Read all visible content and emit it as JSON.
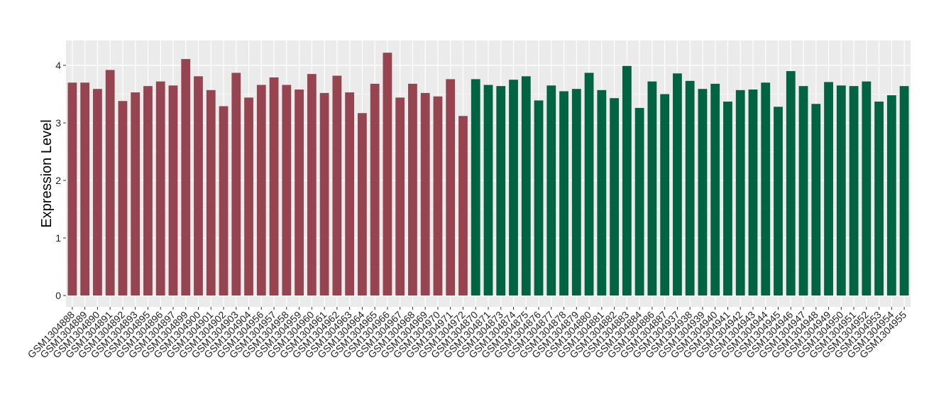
{
  "chart_data": {
    "type": "bar",
    "title": "",
    "xlabel": "",
    "ylabel": "Expression Level",
    "ylim": [
      0,
      4.35
    ],
    "yticks": [
      0,
      1,
      2,
      3,
      4
    ],
    "grid": true,
    "legend": "none",
    "colors": {
      "group1": "#964450",
      "group2": "#006341",
      "panel": "#ebebeb",
      "grid": "#ffffff"
    },
    "categories": [
      "GSM1304888",
      "GSM1304889",
      "GSM1304890",
      "GSM1304891",
      "GSM1304892",
      "GSM1304893",
      "GSM1304895",
      "GSM1304896",
      "GSM1304897",
      "GSM1304899",
      "GSM1304900",
      "GSM1304901",
      "GSM1304902",
      "GSM1304903",
      "GSM1304904",
      "GSM1304956",
      "GSM1304957",
      "GSM1304958",
      "GSM1304959",
      "GSM1304960",
      "GSM1304961",
      "GSM1304962",
      "GSM1304963",
      "GSM1304964",
      "GSM1304965",
      "GSM1304966",
      "GSM1304967",
      "GSM1304968",
      "GSM1304969",
      "GSM1304970",
      "GSM1304971",
      "GSM1304972",
      "GSM1304870",
      "GSM1304871",
      "GSM1304873",
      "GSM1304874",
      "GSM1304875",
      "GSM1304876",
      "GSM1304877",
      "GSM1304878",
      "GSM1304879",
      "GSM1304880",
      "GSM1304881",
      "GSM1304882",
      "GSM1304883",
      "GSM1304884",
      "GSM1304886",
      "GSM1304887",
      "GSM1304937",
      "GSM1304938",
      "GSM1304939",
      "GSM1304940",
      "GSM1304941",
      "GSM1304942",
      "GSM1304943",
      "GSM1304944",
      "GSM1304945",
      "GSM1304946",
      "GSM1304947",
      "GSM1304948",
      "GSM1304949",
      "GSM1304950",
      "GSM1304951",
      "GSM1304952",
      "GSM1304953",
      "GSM1304954",
      "GSM1304955"
    ],
    "values": [
      3.7,
      3.7,
      3.59,
      3.92,
      3.38,
      3.53,
      3.64,
      3.72,
      3.65,
      4.11,
      3.81,
      3.57,
      3.29,
      3.87,
      3.44,
      3.66,
      3.79,
      3.66,
      3.58,
      3.85,
      3.52,
      3.82,
      3.53,
      3.17,
      3.68,
      4.22,
      3.44,
      3.68,
      3.52,
      3.46,
      3.76,
      3.12,
      3.76,
      3.66,
      3.64,
      3.75,
      3.81,
      3.39,
      3.65,
      3.55,
      3.59,
      3.87,
      3.57,
      3.43,
      3.99,
      3.26,
      3.72,
      3.5,
      3.86,
      3.73,
      3.59,
      3.68,
      3.37,
      3.57,
      3.58,
      3.7,
      3.28,
      3.9,
      3.64,
      3.33,
      3.71,
      3.65,
      3.64,
      3.72,
      3.37,
      3.48,
      3.64
    ],
    "groups": [
      1,
      1,
      1,
      1,
      1,
      1,
      1,
      1,
      1,
      1,
      1,
      1,
      1,
      1,
      1,
      1,
      1,
      1,
      1,
      1,
      1,
      1,
      1,
      1,
      1,
      1,
      1,
      1,
      1,
      1,
      1,
      1,
      2,
      2,
      2,
      2,
      2,
      2,
      2,
      2,
      2,
      2,
      2,
      2,
      2,
      2,
      2,
      2,
      2,
      2,
      2,
      2,
      2,
      2,
      2,
      2,
      2,
      2,
      2,
      2,
      2,
      2,
      2,
      2,
      2,
      2,
      2
    ]
  }
}
